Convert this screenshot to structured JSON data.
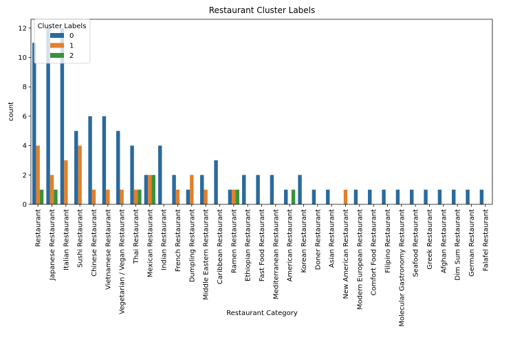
{
  "chart_data": {
    "type": "bar",
    "title": "Restaurant Cluster Labels",
    "xlabel": "Restaurant Category",
    "ylabel": "count",
    "ylim": [
      0,
      12.6
    ],
    "yticks": [
      0,
      2,
      4,
      6,
      8,
      10,
      12
    ],
    "grid": false,
    "legend": {
      "title": "Cluster Labels",
      "position": "top-left"
    },
    "categories": [
      "Restaurant",
      "Japanese Restaurant",
      "Italian Restaurant",
      "Sushi Restaurant",
      "Chinese Restaurant",
      "Vietnamese Restaurant",
      "Vegetarian / Vegan Restaurant",
      "Thai Restaurant",
      "Mexican Restaurant",
      "Indian Restaurant",
      "French Restaurant",
      "Dumpling Restaurant",
      "Middle Eastern Restaurant",
      "Caribbean Restaurant",
      "Ramen Restaurant",
      "Ethiopian Restaurant",
      "Fast Food Restaurant",
      "Mediterranean Restaurant",
      "American Restaurant",
      "Korean Restaurant",
      "Doner Restaurant",
      "Asian Restaurant",
      "New American Restaurant",
      "Modern European Restaurant",
      "Comfort Food Restaurant",
      "Filipino Restaurant",
      "Molecular Gastronomy Restaurant",
      "Seafood Restaurant",
      "Greek Restaurant",
      "Afghan Restaurant",
      "Dim Sum Restaurant",
      "German Restaurant",
      "Falafel Restaurant"
    ],
    "series": [
      {
        "name": "0",
        "color": "#2b6a9c",
        "values": [
          11,
          12,
          12,
          5,
          6,
          6,
          5,
          4,
          2,
          4,
          2,
          1,
          2,
          3,
          1,
          2,
          2,
          2,
          1,
          2,
          1,
          1,
          0,
          1,
          1,
          1,
          1,
          1,
          1,
          1,
          1,
          1,
          1
        ]
      },
      {
        "name": "1",
        "color": "#e1812c",
        "values": [
          4,
          2,
          3,
          4,
          1,
          1,
          1,
          1,
          2,
          0,
          1,
          2,
          1,
          0,
          1,
          0,
          0,
          0,
          0,
          0,
          0,
          0,
          1,
          0,
          0,
          0,
          0,
          0,
          0,
          0,
          0,
          0,
          0
        ]
      },
      {
        "name": "2",
        "color": "#3a923a",
        "values": [
          1,
          1,
          0,
          0,
          0,
          0,
          0,
          1,
          2,
          0,
          0,
          0,
          0,
          0,
          1,
          0,
          0,
          0,
          1,
          0,
          0,
          0,
          0,
          0,
          0,
          0,
          0,
          0,
          0,
          0,
          0,
          0,
          0
        ]
      }
    ]
  }
}
